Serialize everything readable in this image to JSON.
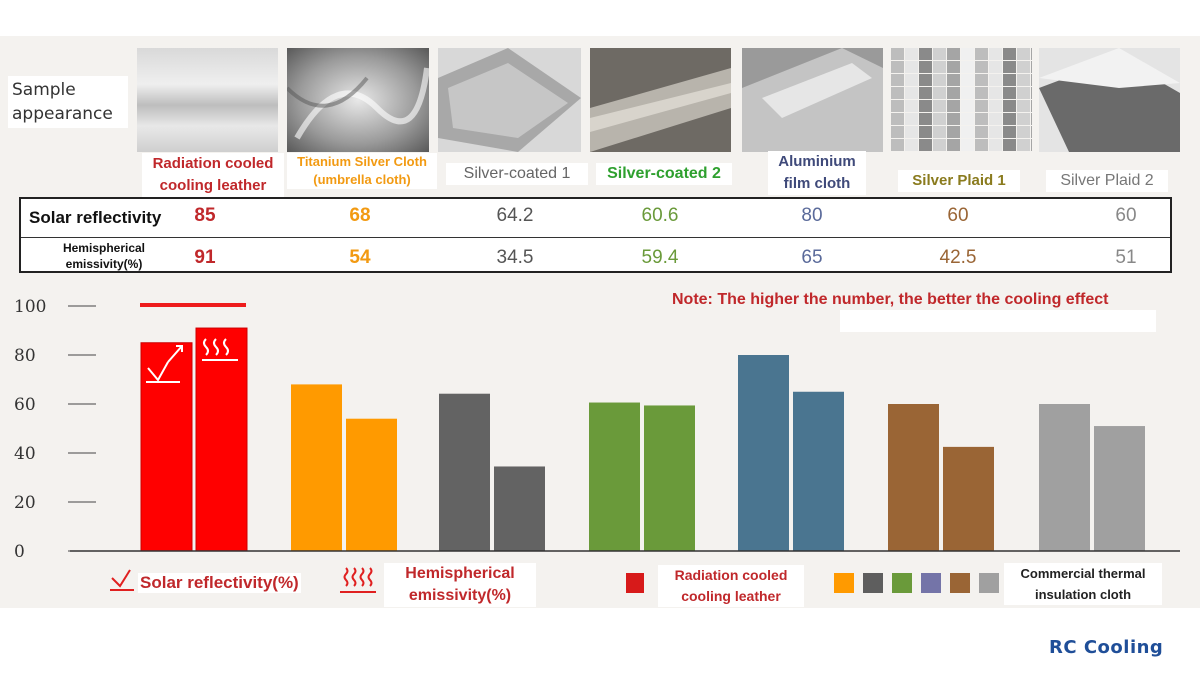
{
  "header": {
    "sample_label": "Sample appearance"
  },
  "samples": [
    {
      "name": "Radiation cooled cooling leather",
      "color": "#c0282b"
    },
    {
      "name": "Titanium Silver Cloth (umbrella cloth)",
      "color": "#f29a12"
    },
    {
      "name": "Silver-coated 1",
      "color": "#666666"
    },
    {
      "name": "Silver-coated 2",
      "color": "#2ea02e"
    },
    {
      "name": "Aluminium film cloth",
      "color": "#3f4a7a"
    },
    {
      "name": "Silver Plaid 1",
      "color": "#8a7b1e"
    },
    {
      "name": "Silver Plaid 2",
      "color": "#777777"
    }
  ],
  "table": {
    "row1_label": "Solar reflectivity",
    "row2_label": "Hemispherical emissivity(%)",
    "reflectivity": [
      "85",
      "68",
      "64.2",
      "60.6",
      "80",
      "60",
      "60"
    ],
    "emissivity": [
      "91",
      "54",
      "34.5",
      "59.4",
      "65",
      "42.5",
      "51"
    ],
    "value_colors": [
      "#c0282b",
      "#f29a12",
      "#555555",
      "#6a9a3a",
      "#5a6a9a",
      "#9a6535",
      "#888888"
    ]
  },
  "note": "Note: The higher the number, the better the cooling effect",
  "legend": {
    "solar": "Solar reflectivity(%)",
    "hemi": "Hemispherical emissivity(%)",
    "rc": "Radiation cooled cooling leather",
    "commercial": "Commercial thermal insulation cloth",
    "rc_color": "#d71a1a",
    "commercial_colors": [
      "#ff9a00",
      "#5e5e5e",
      "#6a9a3a",
      "#7474a8",
      "#9a6535",
      "#a0a0a0"
    ]
  },
  "brand": "RC Cooling",
  "chart_data": {
    "type": "bar",
    "categories": [
      "Radiation cooled cooling leather",
      "Titanium Silver Cloth (umbrella cloth)",
      "Silver-coated 1",
      "Silver-coated 2",
      "Aluminium film cloth",
      "Silver Plaid 1",
      "Silver Plaid 2"
    ],
    "series": [
      {
        "name": "Solar reflectivity(%)",
        "values": [
          85,
          68,
          64.2,
          60.6,
          80,
          60,
          60
        ]
      },
      {
        "name": "Hemispherical emissivity(%)",
        "values": [
          91,
          54,
          34.5,
          59.4,
          65,
          42.5,
          51
        ]
      }
    ],
    "bar_colors": [
      "#ff0000",
      "#ff9a00",
      "#636363",
      "#6a9a3a",
      "#4a7590",
      "#9a6535",
      "#a0a0a0"
    ],
    "yticks": [
      "0",
      "20",
      "40",
      "60",
      "80",
      "100"
    ],
    "ylim": [
      0,
      100
    ],
    "grid": false
  }
}
